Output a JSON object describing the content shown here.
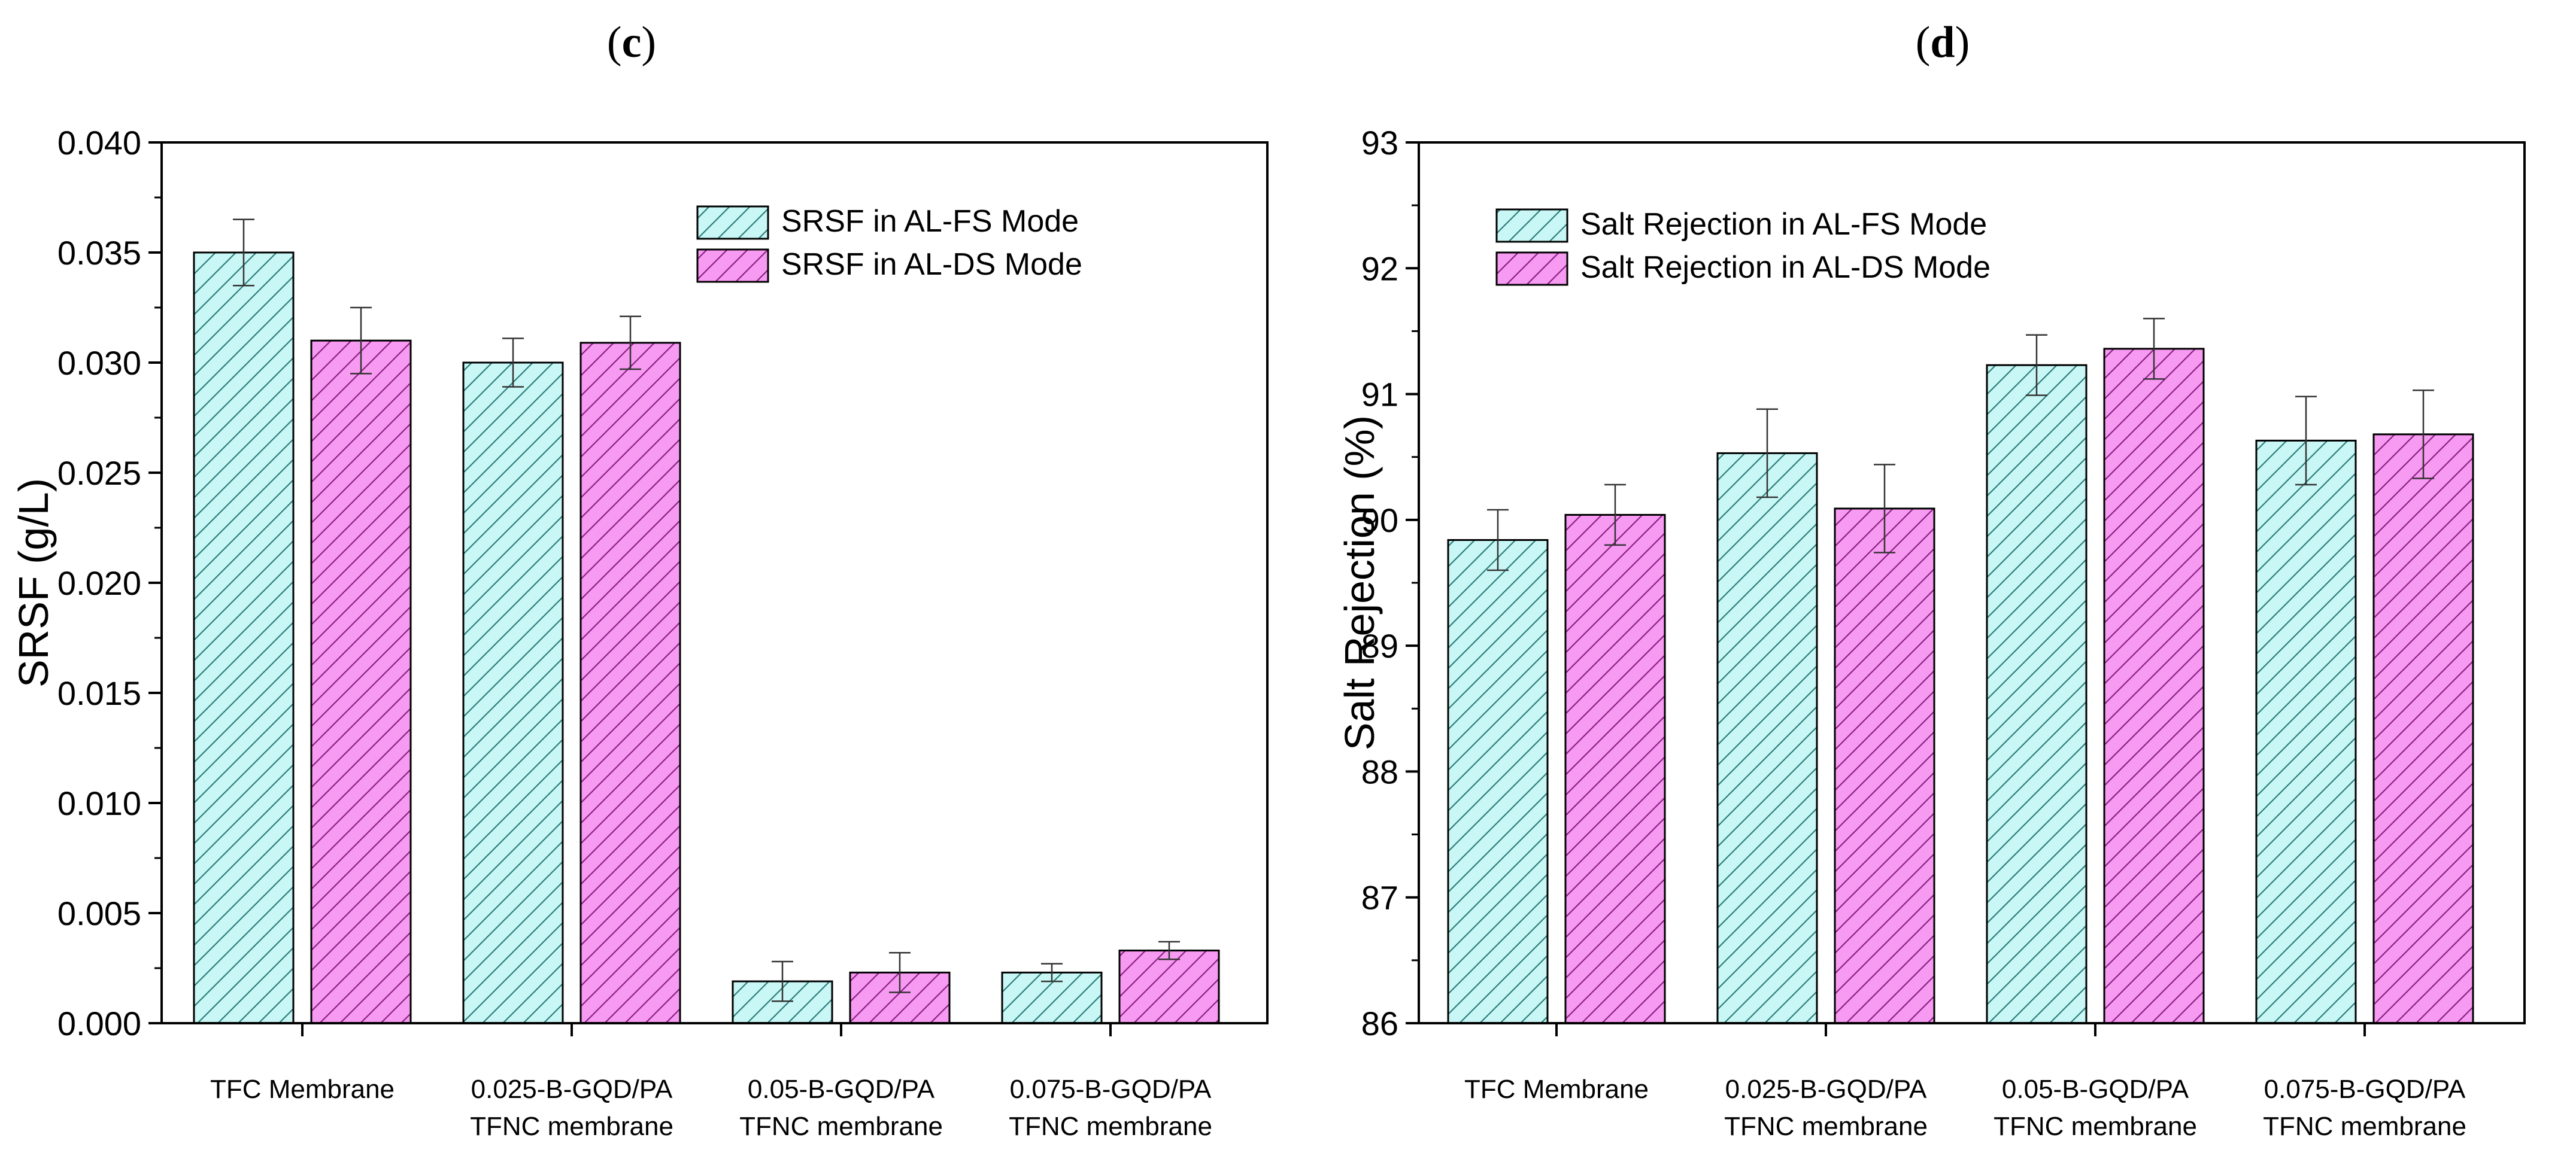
{
  "figure": {
    "panel_c": {
      "open": "(",
      "letter": "c",
      "close": ")"
    },
    "panel_d": {
      "open": "(",
      "letter": "d",
      "close": ")"
    }
  },
  "colors": {
    "fs_fill": "#c9f7f5",
    "fs_hatch": "#2a7d7a",
    "ds_fill": "#f79af1",
    "ds_hatch": "#8a1f84",
    "axis": "#000000"
  },
  "chart_data": [
    {
      "id": "c",
      "type": "bar",
      "title": "",
      "xlabel": "",
      "ylabel": "SRSF (g/L)",
      "ylim": [
        0,
        0.04
      ],
      "yticks": [
        0,
        0.005,
        0.01,
        0.015,
        0.02,
        0.025,
        0.03,
        0.035,
        0.04
      ],
      "ytick_labels": [
        "0.000",
        "0.005",
        "0.010",
        "0.015",
        "0.020",
        "0.025",
        "0.030",
        "0.035",
        "0.040"
      ],
      "categories": [
        [
          "TFC Membrane"
        ],
        [
          "0.025-B-GQD/PA",
          "TFNC membrane"
        ],
        [
          "0.05-B-GQD/PA",
          "TFNC membrane"
        ],
        [
          "0.075-B-GQD/PA",
          "TFNC membrane"
        ]
      ],
      "legend_position": "top-right",
      "series": [
        {
          "name": "SRSF in AL-FS Mode",
          "values": [
            0.035,
            0.03,
            0.0019,
            0.0023
          ],
          "errors": [
            0.0015,
            0.0011,
            0.0009,
            0.0004
          ]
        },
        {
          "name": "SRSF in AL-DS Mode",
          "values": [
            0.031,
            0.0309,
            0.0023,
            0.0033
          ],
          "errors": [
            0.0015,
            0.0012,
            0.0009,
            0.0004
          ]
        }
      ]
    },
    {
      "id": "d",
      "type": "bar",
      "title": "",
      "xlabel": "",
      "ylabel": "Salt Rejection (%)",
      "ylim": [
        86,
        93
      ],
      "yticks": [
        86,
        87,
        88,
        89,
        90,
        91,
        92,
        93
      ],
      "ytick_labels": [
        "86",
        "87",
        "88",
        "89",
        "90",
        "91",
        "92",
        "93"
      ],
      "categories": [
        [
          "TFC Membrane"
        ],
        [
          "0.025-B-GQD/PA",
          "TFNC membrane"
        ],
        [
          "0.05-B-GQD/PA",
          "TFNC membrane"
        ],
        [
          "0.075-B-GQD/PA",
          "TFNC membrane"
        ]
      ],
      "legend_position": "top-left",
      "series": [
        {
          "name": "Salt Rejection in AL-FS Mode",
          "values": [
            89.84,
            90.53,
            91.23,
            90.63
          ],
          "errors": [
            0.24,
            0.35,
            0.24,
            0.35
          ]
        },
        {
          "name": "Salt Rejection in AL-DS Mode",
          "values": [
            90.04,
            90.09,
            91.36,
            90.68
          ],
          "errors": [
            0.24,
            0.35,
            0.24,
            0.35
          ]
        }
      ]
    }
  ]
}
